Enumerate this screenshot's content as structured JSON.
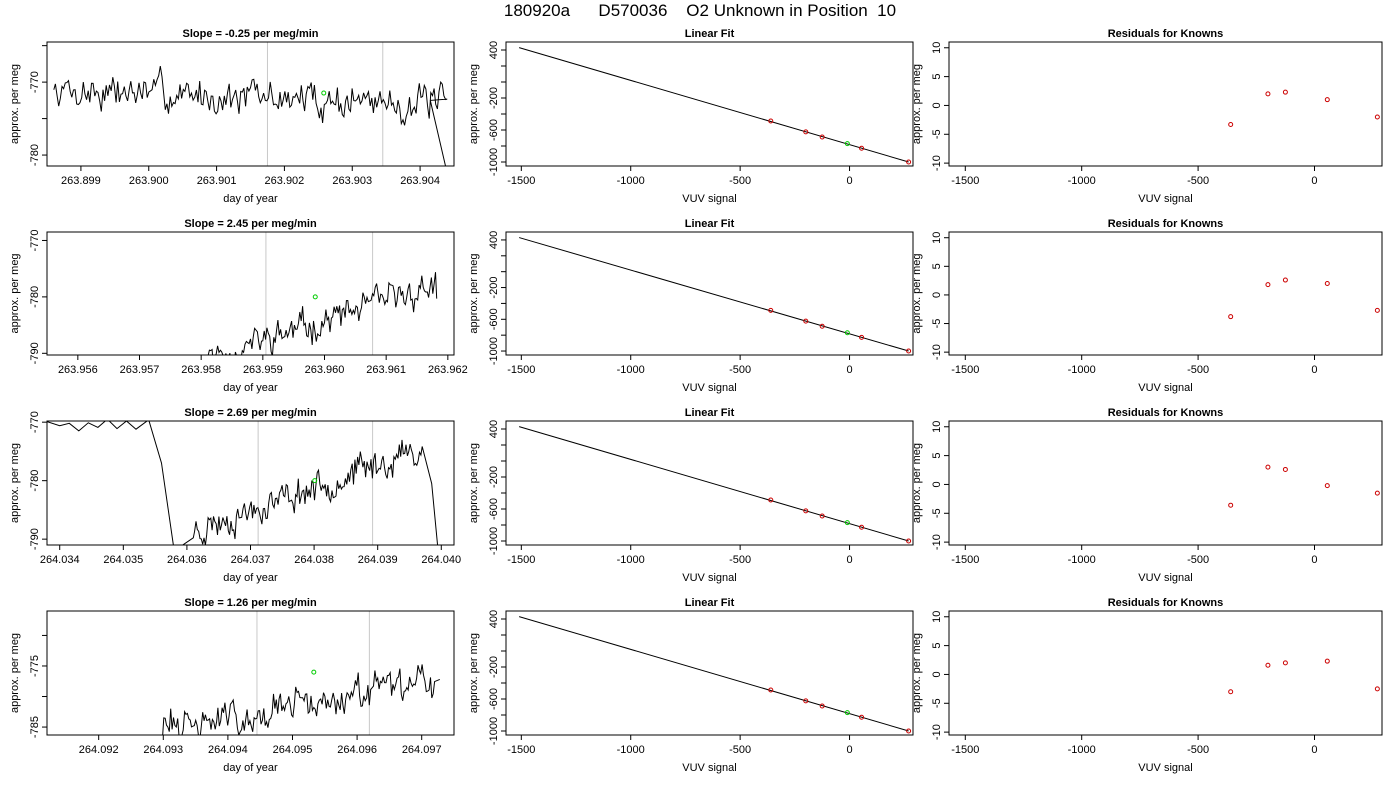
{
  "figure": {
    "title": "180920a      D570036    O2 Unknown in Position  10"
  },
  "colors": {
    "trace": "#000000",
    "marker_line": "#c8c8c8",
    "known_points": "#cc0000",
    "unknown_point": "#00cc00"
  },
  "chart_data": [
    {
      "row": 1,
      "type": "line",
      "title": "Slope =  -0.25  per meg/min",
      "xlabel": "day of year",
      "ylabel": "approx. per meg",
      "xlim": [
        263.8985,
        263.9045
      ],
      "ylim": [
        -781.5,
        -764.5
      ],
      "xticks": [
        263.899,
        263.9,
        263.901,
        263.902,
        263.903,
        263.904
      ],
      "xtick_labels": [
        "263.899",
        "263.900",
        "263.901",
        "263.902",
        "263.903",
        "263.904"
      ],
      "yticks": [
        -780,
        -775,
        -770,
        -765
      ],
      "ytick_labels": [
        "-780",
        "",
        "-770",
        ""
      ],
      "vlines": [
        263.90175,
        263.90345
      ],
      "unknown_point": {
        "x": 263.90258,
        "y": -771.5
      },
      "trace": {
        "start": 263.8986,
        "end": 263.9044,
        "n": 240,
        "base": -771.0,
        "slope": -0.25,
        "noise": 1.7,
        "wave": 0,
        "seed": 7,
        "tail": [
          {
            "x": 263.90415,
            "y": -772.5
          },
          {
            "x": 263.9044,
            "y": -782.5
          }
        ]
      }
    },
    {
      "row": 1,
      "type": "scatter",
      "title": "Linear Fit",
      "xlabel": "VUV signal",
      "ylabel": "approx. per meg",
      "xlim": [
        -1570,
        290
      ],
      "ylim": [
        -1050,
        500
      ],
      "xticks": [
        -1500,
        -1000,
        -500,
        0
      ],
      "xtick_labels": [
        "-1500",
        "-1000",
        "-500",
        "0"
      ],
      "yticks": [
        -1000,
        -800,
        -600,
        -400,
        -200,
        0,
        200,
        400
      ],
      "ytick_labels": [
        "-1000",
        "",
        "-600",
        "",
        "-200",
        "",
        "",
        "400"
      ],
      "fit_line": {
        "x": [
          -1510,
          270
        ],
        "y": [
          430,
          -1000
        ]
      },
      "knowns": {
        "x": [
          -360,
          -200,
          -125,
          55,
          270
        ],
        "y": [
          -488,
          -623,
          -688,
          -828,
          -1000
        ]
      },
      "unknown": {
        "x": -10,
        "y": -770
      }
    },
    {
      "row": 1,
      "type": "scatter",
      "title": "Residuals for Knowns",
      "xlabel": "VUV signal",
      "ylabel": "approx. per meg",
      "xlim": [
        -1570,
        290
      ],
      "ylim": [
        -10.5,
        11
      ],
      "xticks": [
        -1500,
        -1000,
        -500,
        0
      ],
      "xtick_labels": [
        "-1500",
        "-1000",
        "-500",
        "0"
      ],
      "yticks": [
        -10,
        -5,
        0,
        5,
        10
      ],
      "ytick_labels": [
        "-10",
        "-5",
        "0",
        "5",
        "10"
      ],
      "knowns": {
        "x": [
          -360,
          -200,
          -125,
          55,
          270
        ],
        "y": [
          -3.3,
          2.0,
          2.3,
          1.0,
          -2.0
        ]
      }
    },
    {
      "row": 2,
      "type": "line",
      "title": "Slope =  2.45  per meg/min",
      "xlabel": "day of year",
      "ylabel": "approx. per meg",
      "xlim": [
        263.9555,
        263.9621
      ],
      "ylim": [
        -790.3,
        -768.5
      ],
      "xticks": [
        263.956,
        263.957,
        263.958,
        263.959,
        263.96,
        263.961,
        263.962
      ],
      "xtick_labels": [
        "263.956",
        "263.957",
        "263.958",
        "263.959",
        "263.960",
        "263.961",
        "263.962"
      ],
      "yticks": [
        -790,
        -780,
        -770
      ],
      "ytick_labels": [
        "-790",
        "-780",
        "-770"
      ],
      "vlines": [
        263.95905,
        263.96078
      ],
      "unknown_point": {
        "x": 263.95985,
        "y": -780.0
      },
      "trace": {
        "start": 263.9578,
        "end": 263.9618,
        "n": 180,
        "base": -792.0,
        "slope": 2.45,
        "noise": 1.9,
        "wave": 0,
        "seed": 11,
        "tail": [
          {
            "x": 263.96182,
            "y": -780.3
          }
        ]
      }
    },
    {
      "row": 2,
      "type": "scatter",
      "title": "Linear Fit",
      "xlabel": "VUV signal",
      "ylabel": "approx. per meg",
      "xlim": [
        -1570,
        290
      ],
      "ylim": [
        -1050,
        500
      ],
      "xticks": [
        -1500,
        -1000,
        -500,
        0
      ],
      "xtick_labels": [
        "-1500",
        "-1000",
        "-500",
        "0"
      ],
      "yticks": [
        -1000,
        -800,
        -600,
        -400,
        -200,
        0,
        200,
        400
      ],
      "ytick_labels": [
        "-1000",
        "",
        "-600",
        "",
        "-200",
        "",
        "",
        "400"
      ],
      "fit_line": {
        "x": [
          -1510,
          270
        ],
        "y": [
          430,
          -1000
        ]
      },
      "knowns": {
        "x": [
          -360,
          -200,
          -125,
          55,
          270
        ],
        "y": [
          -488,
          -623,
          -688,
          -828,
          -1000
        ]
      },
      "unknown": {
        "x": -10,
        "y": -770
      }
    },
    {
      "row": 2,
      "type": "scatter",
      "title": "Residuals for Knowns",
      "xlabel": "VUV signal",
      "ylabel": "approx. per meg",
      "xlim": [
        -1570,
        290
      ],
      "ylim": [
        -10.5,
        11
      ],
      "xticks": [
        -1500,
        -1000,
        -500,
        0
      ],
      "xtick_labels": [
        "-1500",
        "-1000",
        "-500",
        "0"
      ],
      "yticks": [
        -10,
        -5,
        0,
        5,
        10
      ],
      "ytick_labels": [
        "-10",
        "-5",
        "0",
        "5",
        "10"
      ],
      "knowns": {
        "x": [
          -360,
          -200,
          -125,
          55,
          270
        ],
        "y": [
          -3.8,
          1.8,
          2.6,
          2.0,
          -2.7
        ]
      }
    },
    {
      "row": 3,
      "type": "line",
      "title": "Slope =  2.69  per meg/min",
      "xlabel": "day of year",
      "ylabel": "approx. per meg",
      "xlim": [
        264.0338,
        264.0402
      ],
      "ylim": [
        -791.0,
        -769.8
      ],
      "xticks": [
        264.034,
        264.035,
        264.036,
        264.037,
        264.038,
        264.039,
        264.04
      ],
      "xtick_labels": [
        "264.034",
        "264.035",
        "264.036",
        "264.037",
        "264.038",
        "264.039",
        "264.040"
      ],
      "yticks": [
        -790,
        -780,
        -770
      ],
      "ytick_labels": [
        "-790",
        "-780",
        "-770"
      ],
      "vlines": [
        264.03712,
        264.03892
      ],
      "unknown_point": {
        "x": 264.03801,
        "y": -780.0
      },
      "trace": {
        "start": 264.0361,
        "end": 264.0397,
        "n": 170,
        "base": -788.5,
        "slope": 2.69,
        "noise": 1.9,
        "wave": 0,
        "seed": 23,
        "tail": [
          {
            "x": 264.03985,
            "y": -780.5
          },
          {
            "x": 264.03995,
            "y": -792.0
          }
        ]
      },
      "trace_head": {
        "x": [
          264.0338,
          264.034,
          264.03415,
          264.0343,
          264.03445,
          264.0346,
          264.03475,
          264.0349,
          264.03505,
          264.0352,
          264.0354,
          264.0356,
          264.0358
        ],
        "y": [
          -769.9,
          -770.6,
          -770.2,
          -771.5,
          -770.1,
          -770.9,
          -769.5,
          -771.1,
          -769.8,
          -771.2,
          -769.6,
          -777.0,
          -792.0
        ]
      }
    },
    {
      "row": 3,
      "type": "scatter",
      "title": "Linear Fit",
      "xlabel": "VUV signal",
      "ylabel": "approx. per meg",
      "xlim": [
        -1570,
        290
      ],
      "ylim": [
        -1050,
        500
      ],
      "xticks": [
        -1500,
        -1000,
        -500,
        0
      ],
      "xtick_labels": [
        "-1500",
        "-1000",
        "-500",
        "0"
      ],
      "yticks": [
        -1000,
        -800,
        -600,
        -400,
        -200,
        0,
        200,
        400
      ],
      "ytick_labels": [
        "-1000",
        "",
        "-600",
        "",
        "-200",
        "",
        "",
        "400"
      ],
      "fit_line": {
        "x": [
          -1510,
          270
        ],
        "y": [
          430,
          -1000
        ]
      },
      "knowns": {
        "x": [
          -360,
          -200,
          -125,
          55,
          270
        ],
        "y": [
          -488,
          -623,
          -688,
          -828,
          -1000
        ]
      },
      "unknown": {
        "x": -10,
        "y": -770
      }
    },
    {
      "row": 3,
      "type": "scatter",
      "title": "Residuals for Knowns",
      "xlabel": "VUV signal",
      "ylabel": "approx. per meg",
      "xlim": [
        -1570,
        290
      ],
      "ylim": [
        -10.5,
        11
      ],
      "xticks": [
        -1500,
        -1000,
        -500,
        0
      ],
      "xtick_labels": [
        "-1500",
        "-1000",
        "-500",
        "0"
      ],
      "yticks": [
        -10,
        -5,
        0,
        5,
        10
      ],
      "ytick_labels": [
        "-10",
        "-5",
        "0",
        "5",
        "10"
      ],
      "knowns": {
        "x": [
          -360,
          -200,
          -125,
          55,
          270
        ],
        "y": [
          -3.6,
          3.0,
          2.6,
          -0.2,
          -1.5
        ]
      }
    },
    {
      "row": 4,
      "type": "line",
      "title": "Slope =  1.26  per meg/min",
      "xlabel": "day of year",
      "ylabel": "approx. per meg",
      "xlim": [
        264.0912,
        264.0975
      ],
      "ylim": [
        -786.3,
        -766.0
      ],
      "xticks": [
        264.092,
        264.093,
        264.094,
        264.095,
        264.096,
        264.097
      ],
      "xtick_labels": [
        "264.092",
        "264.093",
        "264.094",
        "264.095",
        "264.096",
        "264.097"
      ],
      "yticks": [
        -785,
        -780,
        -775,
        -770
      ],
      "ytick_labels": [
        "-785",
        "",
        "-775",
        ""
      ],
      "vlines": [
        264.09445,
        264.09619
      ],
      "unknown_point": {
        "x": 264.09533,
        "y": -776.0
      },
      "trace": {
        "start": 264.0929,
        "end": 264.0972,
        "n": 200,
        "base": -785.5,
        "slope": 1.26,
        "noise": 2.0,
        "wave": 0,
        "seed": 31,
        "tail": [
          {
            "x": 264.09728,
            "y": -777.2
          }
        ]
      }
    },
    {
      "row": 4,
      "type": "scatter",
      "title": "Linear Fit",
      "xlabel": "VUV signal",
      "ylabel": "approx. per meg",
      "xlim": [
        -1570,
        290
      ],
      "ylim": [
        -1050,
        500
      ],
      "xticks": [
        -1500,
        -1000,
        -500,
        0
      ],
      "xtick_labels": [
        "-1500",
        "-1000",
        "-500",
        "0"
      ],
      "yticks": [
        -1000,
        -800,
        -600,
        -400,
        -200,
        0,
        200,
        400
      ],
      "ytick_labels": [
        "-1000",
        "",
        "-600",
        "",
        "-200",
        "",
        "",
        "400"
      ],
      "fit_line": {
        "x": [
          -1510,
          270
        ],
        "y": [
          430,
          -1000
        ]
      },
      "knowns": {
        "x": [
          -360,
          -200,
          -125,
          55,
          270
        ],
        "y": [
          -488,
          -623,
          -688,
          -828,
          -1000
        ]
      },
      "unknown": {
        "x": -10,
        "y": -770
      }
    },
    {
      "row": 4,
      "type": "scatter",
      "title": "Residuals for Knowns",
      "xlabel": "VUV signal",
      "ylabel": "approx. per meg",
      "xlim": [
        -1570,
        290
      ],
      "ylim": [
        -10.5,
        11
      ],
      "xticks": [
        -1500,
        -1000,
        -500,
        0
      ],
      "xtick_labels": [
        "-1500",
        "-1000",
        "-500",
        "0"
      ],
      "yticks": [
        -10,
        -5,
        0,
        5,
        10
      ],
      "ytick_labels": [
        "-10",
        "-5",
        "0",
        "5",
        "10"
      ],
      "knowns": {
        "x": [
          -360,
          -200,
          -125,
          55,
          270
        ],
        "y": [
          -3.0,
          1.6,
          2.0,
          2.3,
          -2.5
        ]
      }
    }
  ]
}
